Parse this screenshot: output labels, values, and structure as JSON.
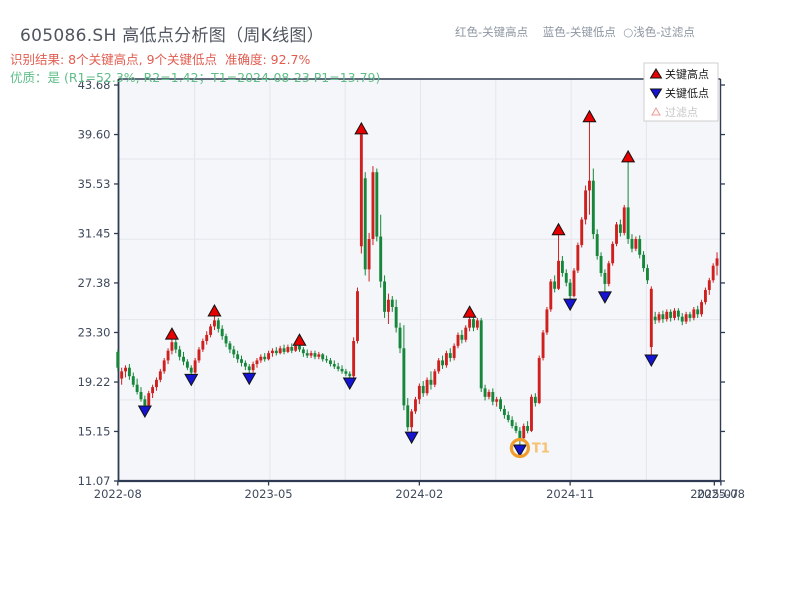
{
  "header": {
    "title": "605086.SH 高低点分析图（周K线图）",
    "result_line": "识别结果: 8个关键高点, 9个关键低点  准确度: 92.7%",
    "quality_line": "优质：是 (R1=52.3%, R2=1.42；T1=2024-08-23 P1=13.79)",
    "legend_hint": "红色-关键高点    蓝色-关键低点  ○浅色-过滤点"
  },
  "legend": {
    "items": [
      {
        "label": "关键高点",
        "marker": "triangle-up",
        "color": "#e60000",
        "text_color": "#1a1a1a"
      },
      {
        "label": "关键低点",
        "marker": "triangle-down",
        "color": "#1414d2",
        "text_color": "#1a1a1a"
      },
      {
        "label": "过滤点",
        "marker": "triangle-up-outline",
        "color": "#e89f97",
        "text_color": "#c6c6c6"
      }
    ]
  },
  "colors": {
    "up_candle": "#cf2020",
    "down_candle": "#15863a",
    "key_high_marker": "#e60000",
    "key_low_marker": "#1414d2",
    "marker_edge": "#111111",
    "axis": "#2e3b52",
    "tick_label": "#3f4a5c",
    "plot_bg": "#f4f6f9",
    "grid": "#e3e7ed",
    "t1_ring": "#f09d2e",
    "t1_text": "#f6c171",
    "title_text": "#50565f",
    "result_text": "#e25c50",
    "quality_text": "#5fbe88",
    "hint_text": "#8d96a2",
    "legend_border": "#cfcfcf"
  },
  "chart_data": {
    "type": "candlestick",
    "period": "weekly",
    "ylim": [
      11.07,
      43.68
    ],
    "y_ticks": [
      43.68,
      39.6,
      35.53,
      31.45,
      27.38,
      23.3,
      19.22,
      15.15,
      11.07
    ],
    "x_ticks": [
      {
        "label": "2022-08",
        "week": 0
      },
      {
        "label": "2023-05",
        "week": 39
      },
      {
        "label": "2024-02",
        "week": 78
      },
      {
        "label": "2024-11",
        "week": 117
      },
      {
        "label": "2025-07",
        "week": 154.3
      },
      {
        "label": "2025-08",
        "week": 156
      }
    ],
    "weeks": 156,
    "candles": [
      [
        21.7,
        21.9,
        20.1,
        20.4
      ],
      [
        19.5,
        20.4,
        19.0,
        20.1
      ],
      [
        20.1,
        20.6,
        19.6,
        20.4
      ],
      [
        20.4,
        20.7,
        19.4,
        19.7
      ],
      [
        19.7,
        20.0,
        18.8,
        19.0
      ],
      [
        19.0,
        19.5,
        18.2,
        18.4
      ],
      [
        18.4,
        18.8,
        17.6,
        17.8
      ],
      [
        17.8,
        18.1,
        17.0,
        17.3
      ],
      [
        17.3,
        18.5,
        17.1,
        18.3
      ],
      [
        18.3,
        19.0,
        17.9,
        18.8
      ],
      [
        18.8,
        19.6,
        18.5,
        19.4
      ],
      [
        19.4,
        20.3,
        19.2,
        20.1
      ],
      [
        20.1,
        21.2,
        19.9,
        21.0
      ],
      [
        21.0,
        22.0,
        20.7,
        21.8
      ],
      [
        21.8,
        23.0,
        21.5,
        22.5
      ],
      [
        22.5,
        22.8,
        21.6,
        21.9
      ],
      [
        21.9,
        22.2,
        21.0,
        21.3
      ],
      [
        21.3,
        21.7,
        20.6,
        20.9
      ],
      [
        20.9,
        21.1,
        20.2,
        20.4
      ],
      [
        20.4,
        20.6,
        19.6,
        20.0
      ],
      [
        20.0,
        21.2,
        19.9,
        21.0
      ],
      [
        21.0,
        22.1,
        20.8,
        21.9
      ],
      [
        21.9,
        22.8,
        21.7,
        22.6
      ],
      [
        22.6,
        23.4,
        22.3,
        23.1
      ],
      [
        23.1,
        24.0,
        22.9,
        23.8
      ],
      [
        23.8,
        24.9,
        23.5,
        24.3
      ],
      [
        24.3,
        24.5,
        23.3,
        23.6
      ],
      [
        23.6,
        23.9,
        22.7,
        23.0
      ],
      [
        23.0,
        23.2,
        22.1,
        22.4
      ],
      [
        22.4,
        22.6,
        21.6,
        21.9
      ],
      [
        21.9,
        22.2,
        21.2,
        21.5
      ],
      [
        21.5,
        21.8,
        20.8,
        21.1
      ],
      [
        21.1,
        21.4,
        20.5,
        20.8
      ],
      [
        20.8,
        21.0,
        20.2,
        20.5
      ],
      [
        20.5,
        20.7,
        19.7,
        20.2
      ],
      [
        20.2,
        20.9,
        20.0,
        20.7
      ],
      [
        20.7,
        21.2,
        20.4,
        21.0
      ],
      [
        21.0,
        21.5,
        20.8,
        21.3
      ],
      [
        21.3,
        21.6,
        20.9,
        21.1
      ],
      [
        21.1,
        21.8,
        21.0,
        21.6
      ],
      [
        21.6,
        22.0,
        21.3,
        21.8
      ],
      [
        21.8,
        22.1,
        21.4,
        21.6
      ],
      [
        21.6,
        22.2,
        21.5,
        22.0
      ],
      [
        22.0,
        22.3,
        21.5,
        21.7
      ],
      [
        21.7,
        22.3,
        21.6,
        22.1
      ],
      [
        22.1,
        22.4,
        21.6,
        21.8
      ],
      [
        21.8,
        22.4,
        21.7,
        22.2
      ],
      [
        22.2,
        22.5,
        21.7,
        21.9
      ],
      [
        21.9,
        22.1,
        21.3,
        21.6
      ],
      [
        21.6,
        21.9,
        21.2,
        21.4
      ],
      [
        21.4,
        21.8,
        21.2,
        21.6
      ],
      [
        21.6,
        21.8,
        21.1,
        21.3
      ],
      [
        21.3,
        21.7,
        21.1,
        21.5
      ],
      [
        21.5,
        21.6,
        20.9,
        21.1
      ],
      [
        21.1,
        21.4,
        20.8,
        21.0
      ],
      [
        21.0,
        21.2,
        20.5,
        20.7
      ],
      [
        20.7,
        21.0,
        20.3,
        20.5
      ],
      [
        20.5,
        20.8,
        20.1,
        20.3
      ],
      [
        20.3,
        20.6,
        19.9,
        20.1
      ],
      [
        20.1,
        20.3,
        19.7,
        19.9
      ],
      [
        19.9,
        20.1,
        19.3,
        19.7
      ],
      [
        19.7,
        22.9,
        19.5,
        22.6
      ],
      [
        22.6,
        27.0,
        22.4,
        26.7
      ],
      [
        30.4,
        39.9,
        29.8,
        39.6
      ],
      [
        36.0,
        36.5,
        28.0,
        28.5
      ],
      [
        28.5,
        31.5,
        27.5,
        31.0
      ],
      [
        31.0,
        37.0,
        30.5,
        36.5
      ],
      [
        36.5,
        36.8,
        30.8,
        31.2
      ],
      [
        31.2,
        33.0,
        27.0,
        27.5
      ],
      [
        27.5,
        28.0,
        24.5,
        25.0
      ],
      [
        25.0,
        26.5,
        24.0,
        26.0
      ],
      [
        26.0,
        26.3,
        25.0,
        25.4
      ],
      [
        25.4,
        26.0,
        23.3,
        23.7
      ],
      [
        23.7,
        24.1,
        21.6,
        22.0
      ],
      [
        22.0,
        23.9,
        16.9,
        17.3
      ],
      [
        17.3,
        17.9,
        15.2,
        15.5
      ],
      [
        15.5,
        17.0,
        14.85,
        16.8
      ],
      [
        16.8,
        18.0,
        16.6,
        17.8
      ],
      [
        17.8,
        19.1,
        17.4,
        18.9
      ],
      [
        18.9,
        19.3,
        18.0,
        18.3
      ],
      [
        18.3,
        19.6,
        18.1,
        19.4
      ],
      [
        19.4,
        20.1,
        18.6,
        19.0
      ],
      [
        19.0,
        20.3,
        18.8,
        20.1
      ],
      [
        20.1,
        21.2,
        19.9,
        21.0
      ],
      [
        21.0,
        21.4,
        20.3,
        20.6
      ],
      [
        20.6,
        21.8,
        20.4,
        21.6
      ],
      [
        21.6,
        22.0,
        20.9,
        21.2
      ],
      [
        21.2,
        22.4,
        21.0,
        22.2
      ],
      [
        22.2,
        23.3,
        22.0,
        23.1
      ],
      [
        23.1,
        23.5,
        22.4,
        22.7
      ],
      [
        22.7,
        23.9,
        22.5,
        23.7
      ],
      [
        23.7,
        24.8,
        23.4,
        24.4
      ],
      [
        24.4,
        24.6,
        23.4,
        23.7
      ],
      [
        23.7,
        24.5,
        23.5,
        24.3
      ],
      [
        24.3,
        24.5,
        18.4,
        18.7
      ],
      [
        18.7,
        19.0,
        17.7,
        18.0
      ],
      [
        18.0,
        18.6,
        17.8,
        18.4
      ],
      [
        18.4,
        18.7,
        17.3,
        17.6
      ],
      [
        17.6,
        18.0,
        17.2,
        17.8
      ],
      [
        17.8,
        18.0,
        16.8,
        17.0
      ],
      [
        17.0,
        17.3,
        16.2,
        16.5
      ],
      [
        16.5,
        16.8,
        15.9,
        16.1
      ],
      [
        16.1,
        16.4,
        15.4,
        15.6
      ],
      [
        15.6,
        15.9,
        15.0,
        15.2
      ],
      [
        15.2,
        15.5,
        13.8,
        14.6
      ],
      [
        14.6,
        15.8,
        14.4,
        15.6
      ],
      [
        15.6,
        16.0,
        15.0,
        15.2
      ],
      [
        15.2,
        18.2,
        15.1,
        18.0
      ],
      [
        18.0,
        18.3,
        17.2,
        17.5
      ],
      [
        17.5,
        21.4,
        17.4,
        21.2
      ],
      [
        21.2,
        23.5,
        21.0,
        23.3
      ],
      [
        23.3,
        25.4,
        23.1,
        25.2
      ],
      [
        25.2,
        27.7,
        25.0,
        27.5
      ],
      [
        27.5,
        28.0,
        26.6,
        26.9
      ],
      [
        26.9,
        31.6,
        26.8,
        29.2
      ],
      [
        29.2,
        29.6,
        27.9,
        28.2
      ],
      [
        28.2,
        28.5,
        27.1,
        27.4
      ],
      [
        27.4,
        27.7,
        25.8,
        26.3
      ],
      [
        26.3,
        28.6,
        26.2,
        28.4
      ],
      [
        28.4,
        30.7,
        28.2,
        30.5
      ],
      [
        30.5,
        32.8,
        30.3,
        32.6
      ],
      [
        32.6,
        35.4,
        32.2,
        35.0
      ],
      [
        35.0,
        40.9,
        33.0,
        35.8
      ],
      [
        35.8,
        36.8,
        31.0,
        31.4
      ],
      [
        31.4,
        31.8,
        29.3,
        29.6
      ],
      [
        29.6,
        29.9,
        27.9,
        28.2
      ],
      [
        28.2,
        28.5,
        26.4,
        27.3
      ],
      [
        27.3,
        29.2,
        27.1,
        29.0
      ],
      [
        29.0,
        30.8,
        28.8,
        30.6
      ],
      [
        30.6,
        32.4,
        30.4,
        32.2
      ],
      [
        32.2,
        32.6,
        31.2,
        31.5
      ],
      [
        31.5,
        33.8,
        31.3,
        33.6
      ],
      [
        33.6,
        37.6,
        30.6,
        31.0
      ],
      [
        31.0,
        31.4,
        29.9,
        30.2
      ],
      [
        30.2,
        31.2,
        30.0,
        31.0
      ],
      [
        31.0,
        31.3,
        29.4,
        29.7
      ],
      [
        29.7,
        30.0,
        28.3,
        28.6
      ],
      [
        28.6,
        28.9,
        27.3,
        27.6
      ],
      [
        22.1,
        27.1,
        21.2,
        26.9
      ],
      [
        24.6,
        25.0,
        24.0,
        24.3
      ],
      [
        24.3,
        25.0,
        24.1,
        24.8
      ],
      [
        24.8,
        25.1,
        24.1,
        24.4
      ],
      [
        24.4,
        25.2,
        24.2,
        25.0
      ],
      [
        25.0,
        25.2,
        24.2,
        24.5
      ],
      [
        24.5,
        25.3,
        24.3,
        25.1
      ],
      [
        25.1,
        25.3,
        24.3,
        24.6
      ],
      [
        24.6,
        24.9,
        23.9,
        24.2
      ],
      [
        24.2,
        25.0,
        24.0,
        24.8
      ],
      [
        24.8,
        25.0,
        24.2,
        24.5
      ],
      [
        24.5,
        25.4,
        24.3,
        25.2
      ],
      [
        25.2,
        25.5,
        24.5,
        24.8
      ],
      [
        24.8,
        26.0,
        24.6,
        25.8
      ],
      [
        25.8,
        27.0,
        25.6,
        26.8
      ],
      [
        26.8,
        27.8,
        26.4,
        27.6
      ],
      [
        27.6,
        29.0,
        27.4,
        28.8
      ],
      [
        28.8,
        29.9,
        28.0,
        29.4
      ]
    ],
    "key_highs": [
      {
        "week": 14,
        "price": 23.0
      },
      {
        "week": 25,
        "price": 24.9
      },
      {
        "week": 47,
        "price": 22.5
      },
      {
        "week": 63,
        "price": 39.9
      },
      {
        "week": 91,
        "price": 24.8
      },
      {
        "week": 114,
        "price": 31.6
      },
      {
        "week": 122,
        "price": 40.9
      },
      {
        "week": 132,
        "price": 37.6
      }
    ],
    "key_lows": [
      {
        "week": 7,
        "price": 17.0
      },
      {
        "week": 19,
        "price": 19.6
      },
      {
        "week": 34,
        "price": 19.7
      },
      {
        "week": 60,
        "price": 19.3
      },
      {
        "week": 76,
        "price": 14.85
      },
      {
        "week": 104,
        "price": 13.79
      },
      {
        "week": 117,
        "price": 25.8
      },
      {
        "week": 126,
        "price": 26.4
      },
      {
        "week": 138,
        "price": 21.2
      }
    ],
    "t1": {
      "week": 104,
      "price": 13.79,
      "label": "T1"
    }
  }
}
